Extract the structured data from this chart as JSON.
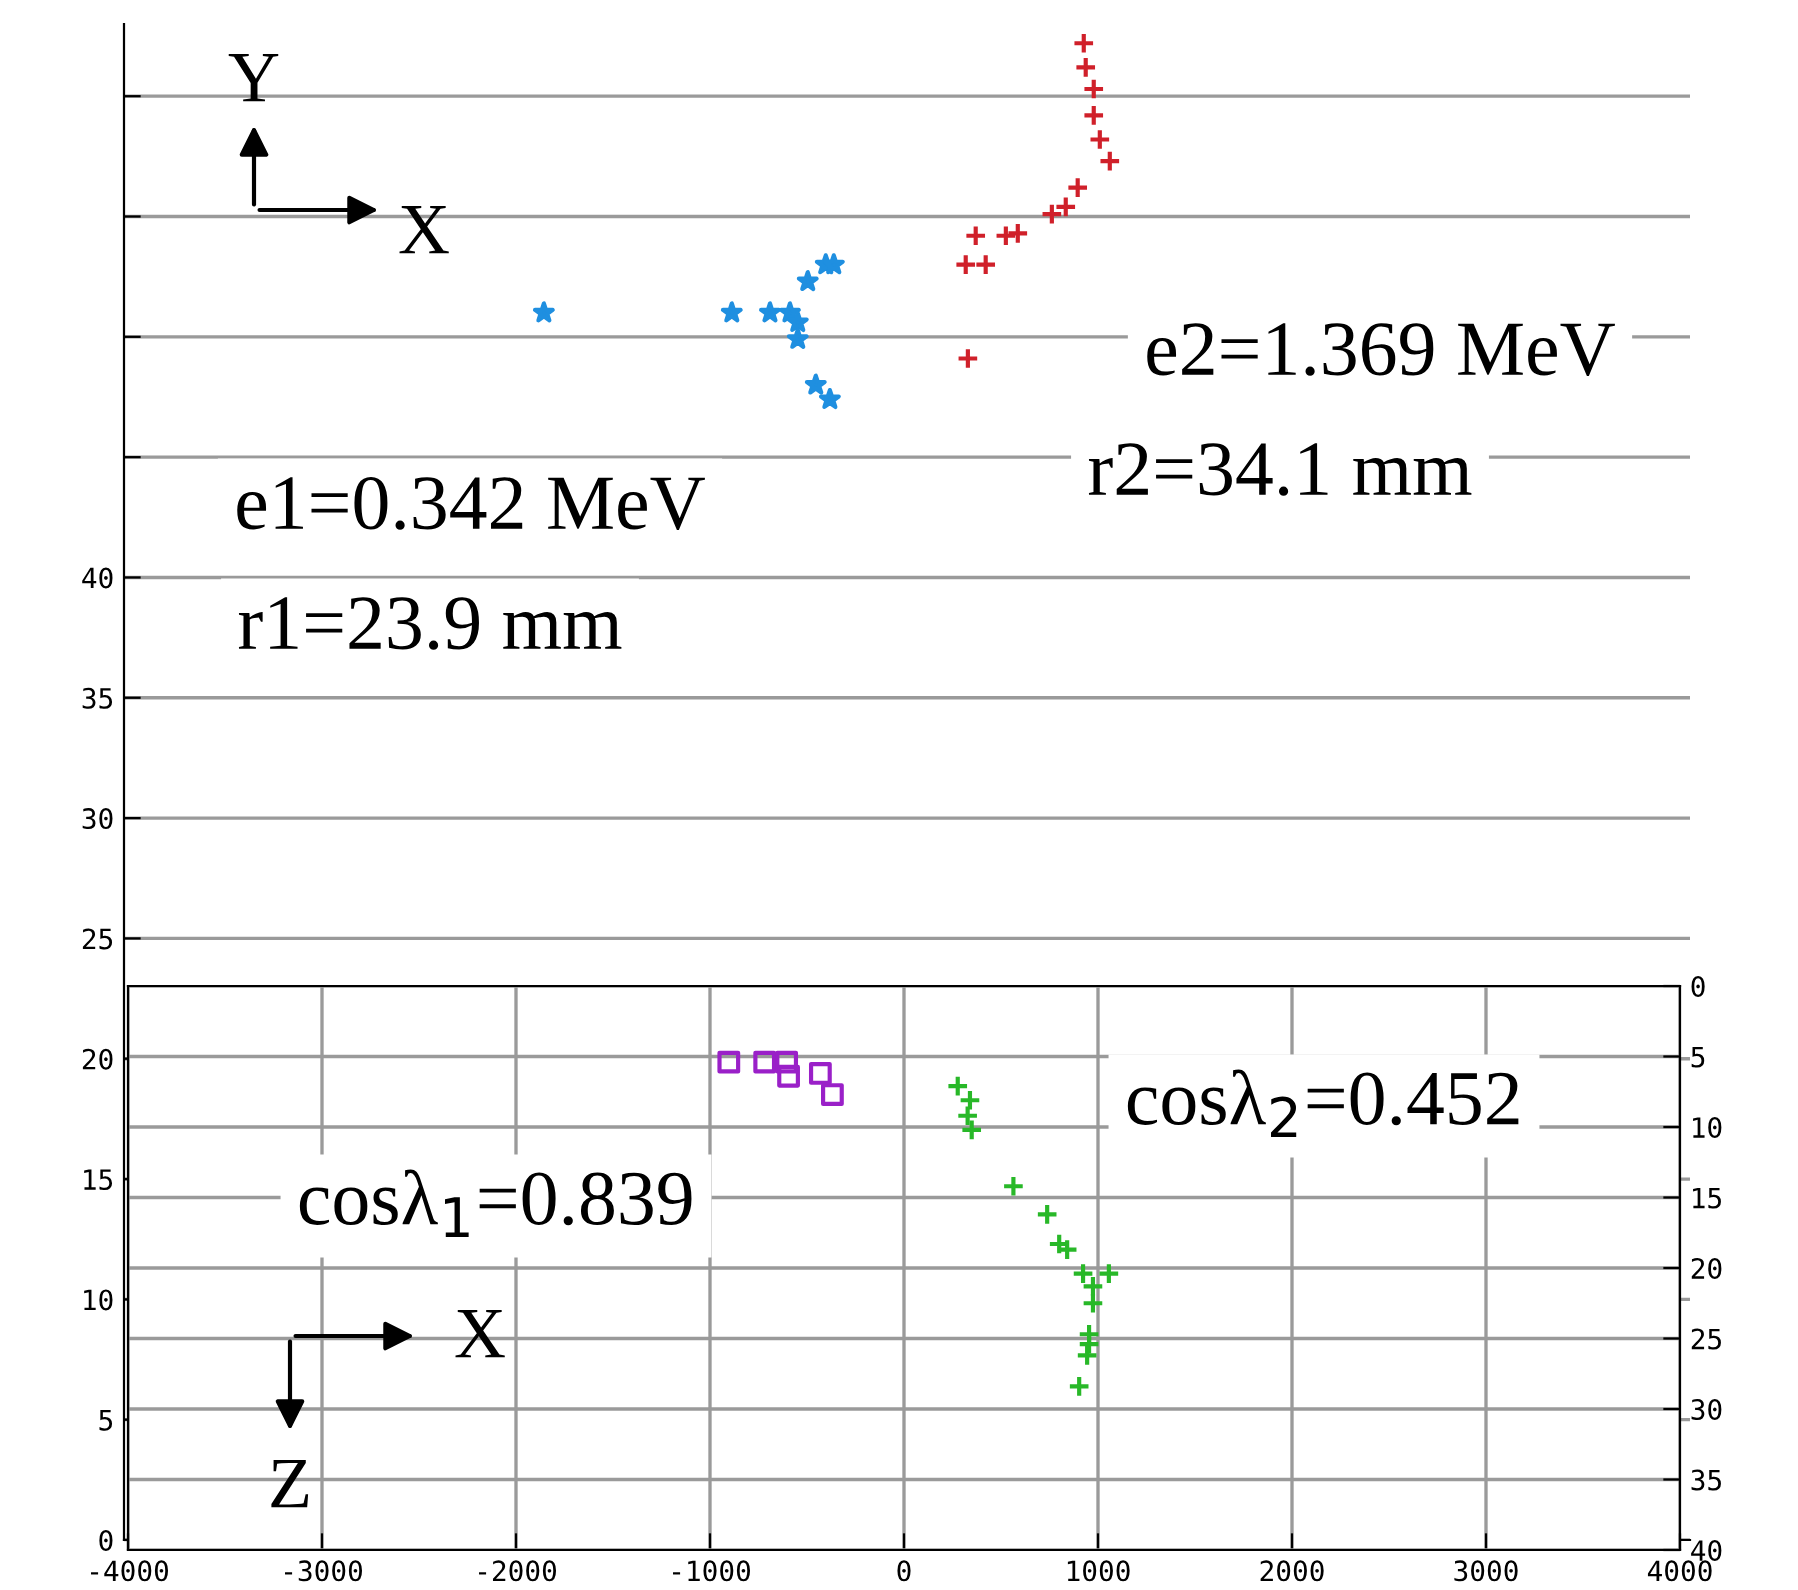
{
  "chart_data": [
    {
      "type": "scatter",
      "xlim": [
        -4000,
        4000
      ],
      "ylim": [
        0,
        63
      ],
      "yticks": [
        0,
        5,
        10,
        15,
        20,
        25,
        30,
        35,
        40,
        {
          "value": 45,
          "label": null
        },
        {
          "value": 50,
          "label": null
        },
        {
          "value": 55,
          "label": null
        },
        {
          "value": 60,
          "label": null
        }
      ],
      "tick_labels": "y",
      "grid": "y",
      "series": [
        {
          "color": "#1f8fe0",
          "marker": "star",
          "x": [
            -1855,
            -895,
            -700,
            -598,
            -558,
            -558,
            -507,
            -415,
            -374,
            -466,
            -394
          ],
          "values": [
            51.0,
            51.0,
            51.0,
            51.0,
            50.6,
            49.9,
            52.3,
            53.0,
            53.0,
            48.0,
            47.4
          ]
        },
        {
          "color": "#d0202a",
          "marker": "cross",
          "x": [
            903,
            913,
            954,
            954,
            985,
            1036,
            872,
            811,
            740,
            566,
            505,
            351,
            402,
            300,
            311
          ],
          "values": [
            62.2,
            61.2,
            60.3,
            59.2,
            58.2,
            57.3,
            56.2,
            55.4,
            55.1,
            54.3,
            54.2,
            54.2,
            53.0,
            53.0,
            49.1
          ]
        }
      ],
      "annotations": [
        "Y",
        "X",
        "e1=0.342 MeV",
        "r1=23.9 mm",
        "e2=1.369 MeV",
        "r2=34.1 mm"
      ]
    },
    {
      "type": "scatter",
      "xlim": [
        -4000,
        4000
      ],
      "xticks": [
        -4000,
        -3000,
        -2000,
        -1000,
        0,
        1000,
        2000,
        3000,
        4000
      ],
      "ylim": [
        40,
        0
      ],
      "yticks": [
        0,
        5,
        10,
        15,
        20,
        25,
        30,
        35,
        40
      ],
      "grid": true,
      "series": [
        {
          "color": "#9a20c8",
          "marker": "square",
          "x": [
            -903,
            -718,
            -605,
            -595,
            -431,
            -369
          ],
          "values": [
            5.4,
            5.4,
            5.4,
            6.4,
            6.2,
            7.7
          ]
        },
        {
          "color": "#28b828",
          "marker": "cross",
          "x": [
            277,
            340,
            328,
            349,
            564,
            738,
            800,
            841,
            923,
            1056,
            974,
            974,
            954,
            954,
            944,
            903
          ],
          "values": [
            7.1,
            8.1,
            9.2,
            10.2,
            14.2,
            16.2,
            18.3,
            18.7,
            20.4,
            20.4,
            21.3,
            22.5,
            24.7,
            25.4,
            26.2,
            28.4
          ]
        }
      ],
      "annotations": [
        "cosλ$_{1}$=0.839",
        "cosλ$_{2}$=0.452",
        "X",
        "Z"
      ]
    }
  ]
}
